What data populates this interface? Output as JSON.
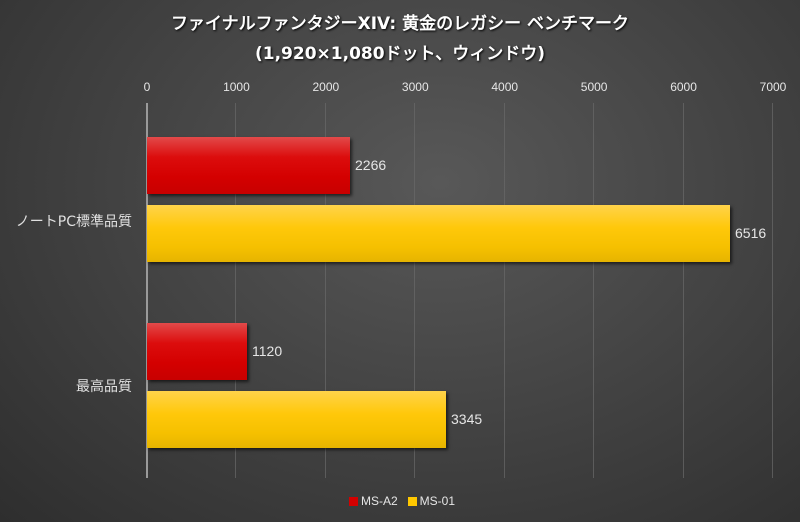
{
  "chart_data": {
    "type": "bar",
    "orientation": "horizontal",
    "title": "ファイナルファンタジーXIV: 黄金のレガシー ベンチマーク",
    "subtitle": "(1,920×1,080ドット、ウィンドウ)",
    "categories": [
      "ノートPC標準品質",
      "最高品質"
    ],
    "series": [
      {
        "name": "MS-A2",
        "color": "#d40000",
        "values": [
          2266,
          1120
        ]
      },
      {
        "name": "MS-01",
        "color": "#ffc800",
        "values": [
          6516,
          3345
        ]
      }
    ],
    "xlabel": "",
    "ylabel": "",
    "xlim": [
      0,
      7000
    ],
    "xticks": [
      "0",
      "1000",
      "2000",
      "3000",
      "4000",
      "5000",
      "6000",
      "7000"
    ],
    "grid": true,
    "legend_position": "bottom",
    "data_labels": true
  },
  "legend": {
    "items": [
      {
        "label": "MS-A2",
        "color": "#d40000"
      },
      {
        "label": "MS-01",
        "color": "#ffc800"
      }
    ]
  }
}
